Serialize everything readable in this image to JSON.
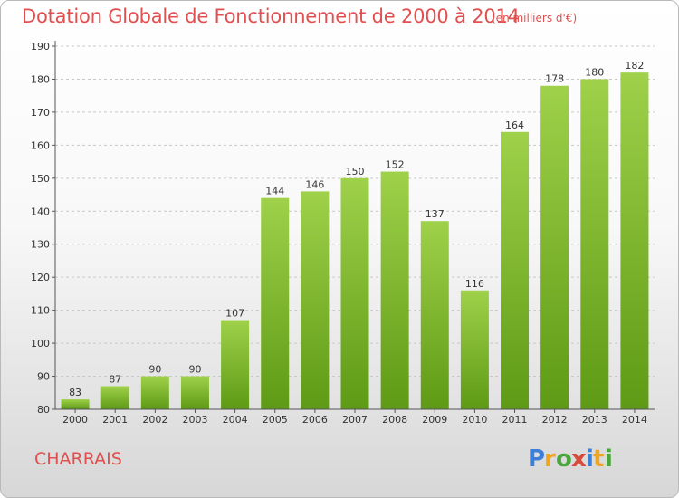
{
  "title": "Dotation Globale de Fonctionnement de 2000 à 2014",
  "subtitle": "(en milliers d'€)",
  "commune": "CHARRAIS",
  "logo_text": "Proxiti",
  "colors": {
    "title": "#e0504f",
    "bar_top": "#9fd14a",
    "bar_bottom": "#5e9a15",
    "grid": "#c8c8c8",
    "axis": "#555555",
    "text": "#333333"
  },
  "chart_data": {
    "type": "bar",
    "title": "Dotation Globale de Fonctionnement de 2000 à 2014",
    "subtitle": "(en milliers d'€)",
    "xlabel": "",
    "ylabel": "",
    "categories": [
      "2000",
      "2001",
      "2002",
      "2003",
      "2004",
      "2005",
      "2006",
      "2007",
      "2008",
      "2009",
      "2010",
      "2011",
      "2012",
      "2013",
      "2014"
    ],
    "values": [
      83,
      87,
      90,
      90,
      107,
      144,
      146,
      150,
      152,
      137,
      116,
      164,
      178,
      180,
      182
    ],
    "ylim": [
      80,
      190
    ],
    "yticks": [
      80,
      90,
      100,
      110,
      120,
      130,
      140,
      150,
      160,
      170,
      180,
      190
    ],
    "grid": true,
    "data_labels": true
  }
}
